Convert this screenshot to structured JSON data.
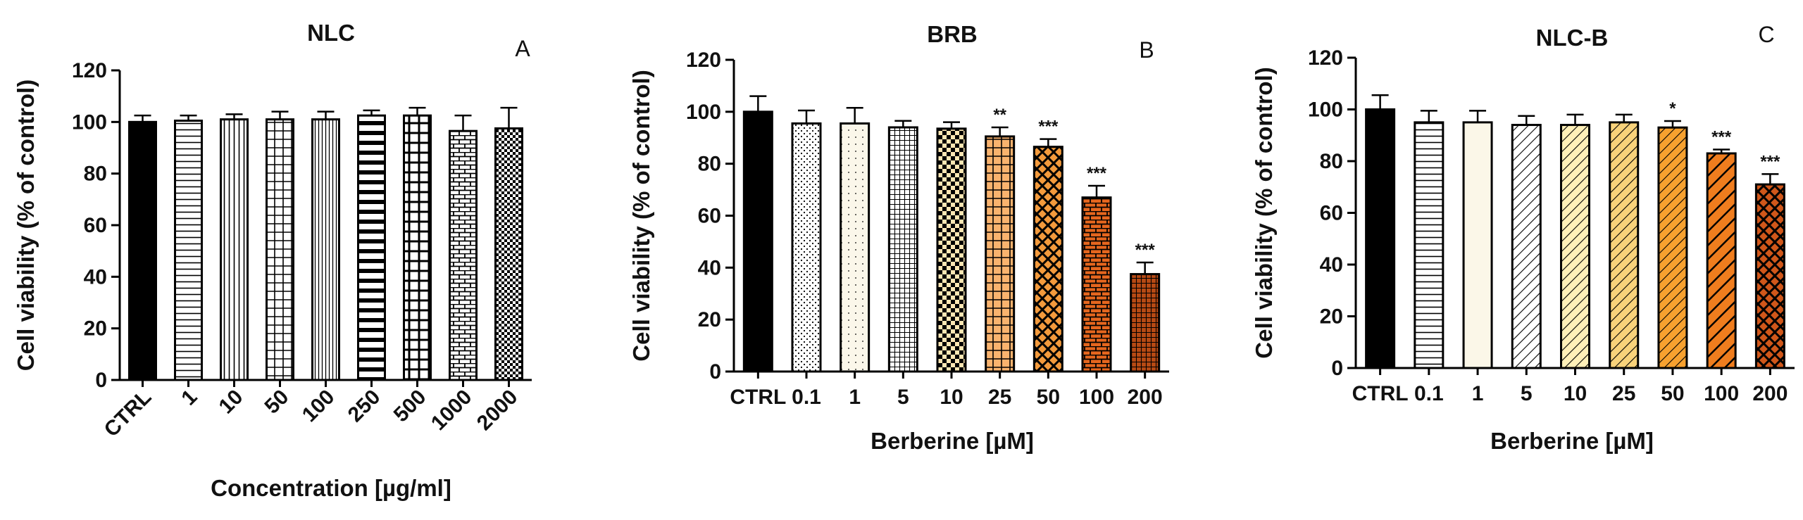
{
  "chart_data": [
    {
      "type": "bar",
      "title": "NLC",
      "panel_letter": "A",
      "xlabel": "Concentration [µg/ml]",
      "ylabel": "Cell viability (% of control)",
      "ylim": [
        0,
        120
      ],
      "yticks": [
        0,
        20,
        40,
        60,
        80,
        100,
        120
      ],
      "tick_rotation": "diagonal",
      "categories": [
        "CTRL",
        "1",
        "10",
        "50",
        "100",
        "250",
        "500",
        "1000",
        "2000"
      ],
      "values": [
        100,
        100.5,
        101,
        101,
        101,
        102.5,
        102.5,
        96.5,
        97.5
      ],
      "errors": [
        2.5,
        2,
        2,
        3,
        3,
        2,
        3,
        6,
        8
      ],
      "significance": [
        "",
        "",
        "",
        "",
        "",
        "",
        "",
        "",
        ""
      ],
      "fills": [
        "solid-black",
        "hlines",
        "vlines",
        "grid",
        "vlines-fine",
        "thick-hlines",
        "big-grid",
        "bricks",
        "checker-dots"
      ],
      "colors": [
        "#000000",
        "#ffffff",
        "#ffffff",
        "#ffffff",
        "#ffffff",
        "#ffffff",
        "#ffffff",
        "#ffffff",
        "#ffffff"
      ]
    },
    {
      "type": "bar",
      "title": "BRB",
      "panel_letter": "B",
      "xlabel": "Berberine [µM]",
      "ylabel": "Cell viability (% of control)",
      "ylim": [
        0,
        120
      ],
      "yticks": [
        0,
        20,
        40,
        60,
        80,
        100,
        120
      ],
      "tick_rotation": "none",
      "categories": [
        "CTRL",
        "0.1",
        "1",
        "5",
        "10",
        "25",
        "50",
        "100",
        "200"
      ],
      "values": [
        100,
        95.5,
        95.5,
        94,
        93.5,
        90.5,
        86.5,
        67,
        37.5
      ],
      "errors": [
        6,
        5,
        6,
        2.5,
        2.5,
        3.5,
        3,
        4.5,
        4.5
      ],
      "significance": [
        "",
        "",
        "",
        "",
        "",
        "**",
        "***",
        "***",
        "***"
      ],
      "fills": [
        "solid-black",
        "dots",
        "dots-sparse",
        "grid-fine",
        "checker",
        "grid",
        "diamonds",
        "bricks",
        "grid-fine"
      ],
      "colors": [
        "#000000",
        "#ffffff",
        "#fbf7ea",
        "#ffffff",
        "#fde6b3",
        "#f9b36e",
        "#f39a3c",
        "#e5661e",
        "#b74a14"
      ]
    },
    {
      "type": "bar",
      "title": "NLC-B",
      "panel_letter": "C",
      "xlabel": "Berberine [µM]",
      "ylabel": "Cell viability (% of control)",
      "ylim": [
        0,
        120
      ],
      "yticks": [
        0,
        20,
        40,
        60,
        80,
        100,
        120
      ],
      "tick_rotation": "none",
      "categories": [
        "CTRL",
        "0.1",
        "1",
        "5",
        "10",
        "25",
        "50",
        "100",
        "200"
      ],
      "values": [
        100,
        95,
        95,
        94,
        94,
        95,
        93,
        83,
        71
      ],
      "errors": [
        5.5,
        4.5,
        4.5,
        3.5,
        4,
        3,
        2.5,
        1.5,
        4
      ],
      "significance": [
        "",
        "",
        "",
        "",
        "",
        "",
        "*",
        "***",
        "***"
      ],
      "fills": [
        "solid-black",
        "hlines",
        "none",
        "diag",
        "diag",
        "diag",
        "diag",
        "diag-bold",
        "diamonds"
      ],
      "colors": [
        "#000000",
        "#ffffff",
        "#fbf7e8",
        "#ffffff",
        "#fff0b8",
        "#f8d27a",
        "#f7a12f",
        "#ef7d1e",
        "#d0571a"
      ]
    }
  ]
}
